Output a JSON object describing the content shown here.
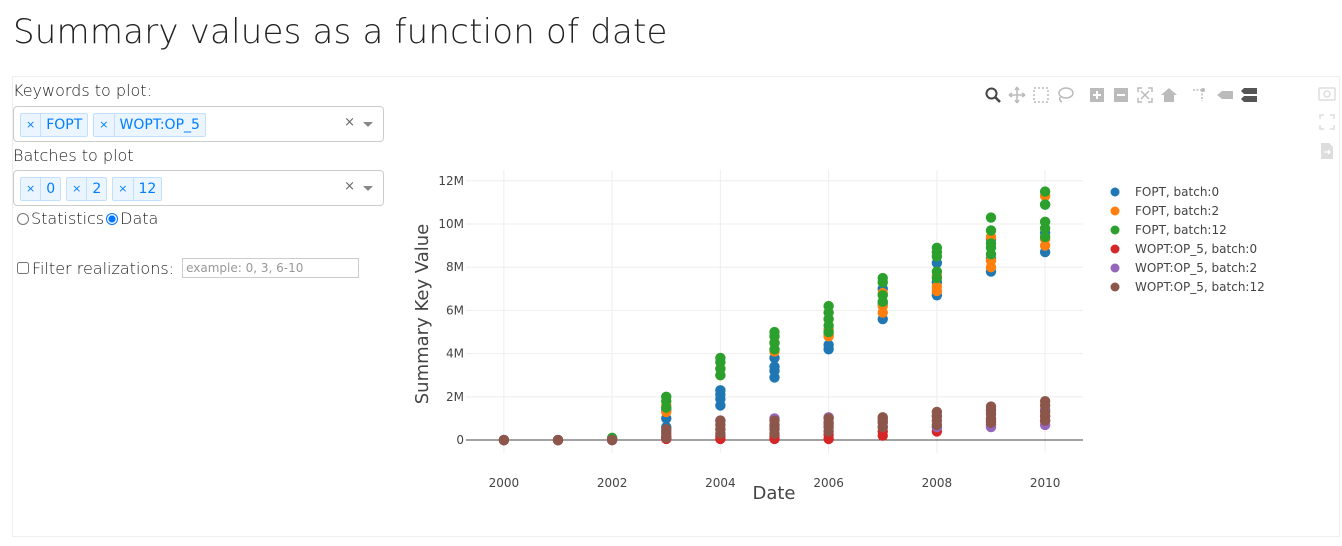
{
  "page": {
    "title": "Summary values as a function of date"
  },
  "controls": {
    "keywords_label": "Keywords to plot:",
    "keywords": [
      "FOPT",
      "WOPT:OP_5"
    ],
    "batches_label": "Batches to plot",
    "batches": [
      "0",
      "2",
      "12"
    ],
    "clear_symbol": "×",
    "tag_remove_symbol": "×",
    "mode_options": [
      "Statistics",
      "Data"
    ],
    "mode_selected": "Data",
    "filter_label": "Filter realizations:",
    "filter_placeholder": "example: 0, 3, 6-10",
    "filter_checked": false
  },
  "modebar": {
    "icons": [
      "zoom-icon",
      "pan-icon",
      "box-select-icon",
      "lasso-select-icon",
      "zoom-in-icon",
      "zoom-out-icon",
      "autoscale-icon",
      "reset-axes-icon",
      "spike-lines-icon",
      "hover-closest-icon",
      "hover-compare-icon"
    ],
    "side_icons": [
      "camera-icon",
      "fullscreen-icon",
      "export-icon"
    ]
  },
  "chart_data": {
    "type": "scatter",
    "xlabel": "Date",
    "ylabel": "Summary Key Value",
    "xlim": [
      1999.3,
      2010.7
    ],
    "ylim": [
      -0.6,
      12.5
    ],
    "x_ticks": [
      2000,
      2002,
      2004,
      2006,
      2008,
      2010
    ],
    "x_tick_labels": [
      "2000",
      "2002",
      "2004",
      "2006",
      "2008",
      "2010"
    ],
    "y_ticks": [
      0,
      2,
      4,
      6,
      8,
      10,
      12
    ],
    "y_tick_labels": [
      "0",
      "2M",
      "4M",
      "6M",
      "8M",
      "10M",
      "12M"
    ],
    "grid": true,
    "legend_position": "right",
    "series": [
      {
        "name": "FOPT, batch:0",
        "color": "#1f77b4",
        "x": [
          2000,
          2001,
          2002,
          2003,
          2003,
          2003,
          2004,
          2004,
          2004,
          2004,
          2005,
          2005,
          2005,
          2005,
          2006,
          2006,
          2006,
          2007,
          2007,
          2007,
          2008,
          2008,
          2008,
          2009,
          2009,
          2009,
          2010,
          2010,
          2010
        ],
        "y": [
          0,
          0,
          0.05,
          0.6,
          1.0,
          1.4,
          1.6,
          1.9,
          2.1,
          2.3,
          2.9,
          3.2,
          3.4,
          3.8,
          4.2,
          4.4,
          4.9,
          5.6,
          6.3,
          7.0,
          6.7,
          7.3,
          8.2,
          7.8,
          8.4,
          9.3,
          8.7,
          9.6,
          10.9
        ]
      },
      {
        "name": "FOPT, batch:2",
        "color": "#ff7f0e",
        "x": [
          2000,
          2001,
          2002,
          2003,
          2003,
          2004,
          2004,
          2005,
          2005,
          2006,
          2006,
          2006,
          2007,
          2007,
          2007,
          2008,
          2008,
          2008,
          2009,
          2009,
          2009,
          2010,
          2010,
          2010
        ],
        "y": [
          0,
          0,
          0.05,
          1.3,
          1.6,
          3.0,
          3.3,
          4.1,
          4.5,
          4.8,
          5.1,
          5.6,
          5.9,
          6.2,
          6.8,
          6.9,
          7.1,
          7.6,
          8.0,
          8.3,
          9.4,
          9.0,
          9.3,
          11.3
        ]
      },
      {
        "name": "FOPT, batch:12",
        "color": "#2ca02c",
        "x": [
          2000,
          2001,
          2002,
          2003,
          2003,
          2003,
          2004,
          2004,
          2004,
          2004,
          2005,
          2005,
          2005,
          2005,
          2006,
          2006,
          2006,
          2006,
          2006,
          2007,
          2007,
          2007,
          2007,
          2008,
          2008,
          2008,
          2008,
          2008,
          2009,
          2009,
          2009,
          2009,
          2009,
          2010,
          2010,
          2010,
          2010,
          2010
        ],
        "y": [
          0,
          0,
          0.1,
          1.5,
          1.8,
          2.0,
          3.0,
          3.3,
          3.6,
          3.8,
          4.2,
          4.5,
          4.8,
          5.0,
          5.0,
          5.3,
          5.6,
          5.9,
          6.2,
          6.4,
          6.7,
          7.3,
          7.5,
          7.5,
          7.8,
          8.5,
          8.7,
          8.9,
          8.6,
          8.9,
          9.1,
          9.7,
          10.3,
          9.4,
          9.8,
          10.1,
          10.9,
          11.5
        ]
      },
      {
        "name": "WOPT:OP_5, batch:0",
        "color": "#d62728",
        "x": [
          2000,
          2001,
          2002,
          2003,
          2003,
          2004,
          2004,
          2005,
          2005,
          2006,
          2006,
          2007,
          2007,
          2008,
          2008,
          2009,
          2009,
          2010,
          2010
        ],
        "y": [
          0,
          0,
          0,
          0.05,
          0.15,
          0.05,
          0.2,
          0.05,
          0.2,
          0.05,
          0.25,
          0.2,
          0.4,
          0.4,
          0.6,
          0.7,
          0.9,
          0.9,
          1.1
        ]
      },
      {
        "name": "WOPT:OP_5, batch:2",
        "color": "#9467bd",
        "x": [
          2000,
          2001,
          2002,
          2003,
          2003,
          2004,
          2004,
          2005,
          2005,
          2006,
          2006,
          2007,
          2007,
          2008,
          2008,
          2009,
          2009,
          2010,
          2010
        ],
        "y": [
          0,
          0,
          0,
          0.2,
          0.4,
          0.5,
          0.9,
          0.6,
          1.0,
          0.7,
          1.05,
          0.6,
          1.0,
          0.6,
          1.1,
          0.6,
          1.3,
          0.7,
          1.4
        ]
      },
      {
        "name": "WOPT:OP_5, batch:12",
        "color": "#8c564b",
        "x": [
          2000,
          2001,
          2002,
          2003,
          2003,
          2003,
          2004,
          2004,
          2004,
          2004,
          2005,
          2005,
          2005,
          2005,
          2006,
          2006,
          2006,
          2006,
          2007,
          2007,
          2007,
          2007,
          2008,
          2008,
          2008,
          2008,
          2009,
          2009,
          2009,
          2009,
          2009,
          2010,
          2010,
          2010,
          2010,
          2010
        ],
        "y": [
          0,
          0,
          0,
          0.1,
          0.3,
          0.5,
          0.3,
          0.5,
          0.7,
          0.9,
          0.3,
          0.5,
          0.7,
          0.9,
          0.4,
          0.6,
          0.8,
          1.0,
          0.6,
          0.8,
          0.9,
          1.05,
          0.7,
          0.9,
          1.1,
          1.3,
          0.8,
          1.0,
          1.2,
          1.4,
          1.55,
          0.9,
          1.1,
          1.3,
          1.6,
          1.8
        ]
      }
    ]
  }
}
